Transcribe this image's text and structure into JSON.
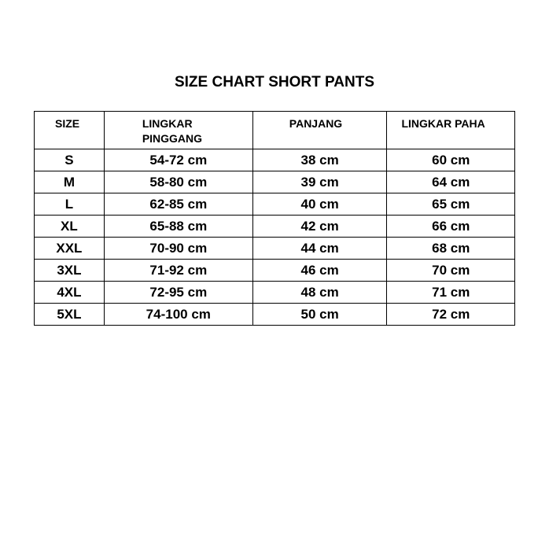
{
  "title": "SIZE CHART SHORT PANTS",
  "headers": [
    "SIZE",
    "LINGKAR PINGGANG",
    "PANJANG",
    "LINGKAR PAHA"
  ],
  "rows": [
    [
      "S",
      "54-72 cm",
      "38 cm",
      "60 cm"
    ],
    [
      "M",
      "58-80 cm",
      "39 cm",
      "64 cm"
    ],
    [
      "L",
      "62-85 cm",
      "40 cm",
      "65 cm"
    ],
    [
      "XL",
      "65-88 cm",
      "42 cm",
      "66 cm"
    ],
    [
      "XXL",
      "70-90 cm",
      "44 cm",
      "68 cm"
    ],
    [
      "3XL",
      "71-92 cm",
      "46 cm",
      "70 cm"
    ],
    [
      "4XL",
      "72-95 cm",
      "48 cm",
      "71 cm"
    ],
    [
      "5XL",
      "74-100 cm",
      "50 cm",
      "72 cm"
    ]
  ]
}
